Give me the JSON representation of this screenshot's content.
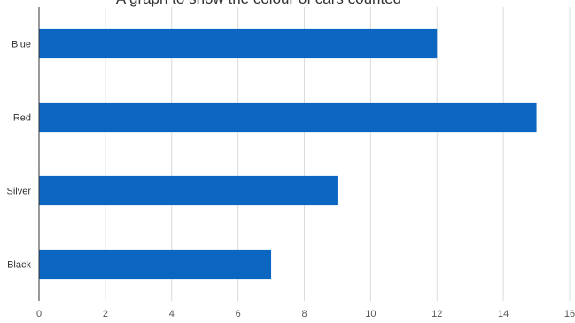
{
  "chart_data": {
    "type": "bar",
    "orientation": "horizontal",
    "title": "A graph to show the colour of cars counted",
    "categories": [
      "Blue",
      "Red",
      "Silver",
      "Black"
    ],
    "values": [
      12,
      15,
      9,
      7
    ],
    "xlim": [
      0,
      16
    ],
    "xticks": [
      "0",
      "2",
      "4",
      "6",
      "8",
      "10",
      "12",
      "14",
      "16"
    ],
    "xlabel": "",
    "ylabel": "",
    "grid": true,
    "bar_color": "#0b66c2"
  }
}
